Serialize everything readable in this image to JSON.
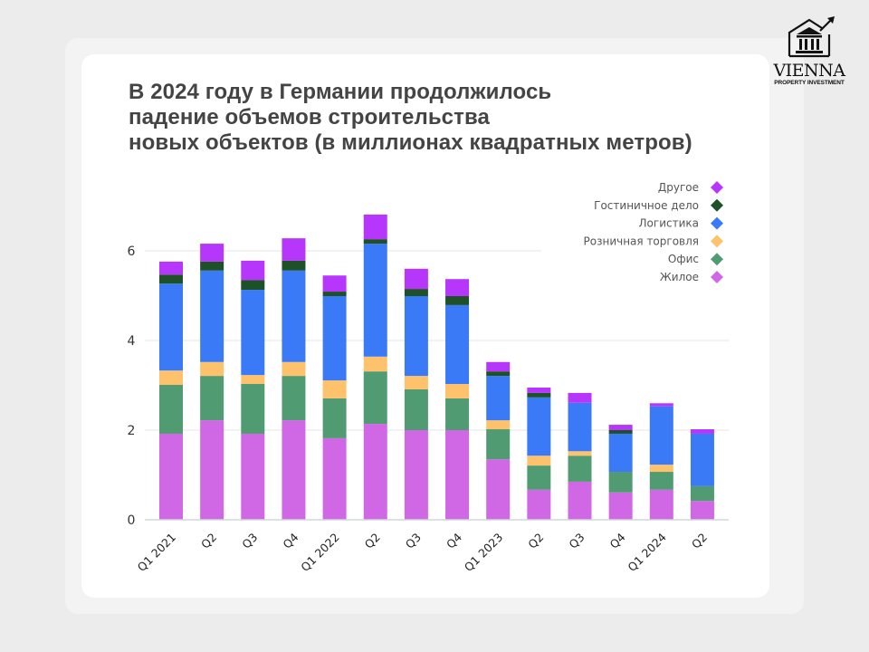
{
  "chart_data": {
    "type": "bar",
    "stacked": true,
    "title": [
      "В 2024 году в Германии продолжилось",
      "падение объемов строительства",
      "новых объектов (в миллионах квадратных метров)"
    ],
    "xlabel": "",
    "ylabel": "",
    "ylim": [
      0,
      7
    ],
    "yticks": [
      0,
      2,
      4,
      6
    ],
    "grid": true,
    "legend_placement": "top-right",
    "categories": [
      "Q1 2021",
      "Q2",
      "Q3",
      "Q4",
      "Q1 2022",
      "Q2",
      "Q3",
      "Q4",
      "Q1 2023",
      "Q2",
      "Q3",
      "Q4",
      "Q1 2024",
      "Q2"
    ],
    "series": [
      {
        "name": "Жилое",
        "color": "#d068e6",
        "values": [
          1.92,
          2.22,
          1.92,
          2.22,
          1.82,
          2.14,
          2.0,
          2.0,
          1.35,
          0.67,
          0.85,
          0.61,
          0.67,
          0.42
        ]
      },
      {
        "name": "Офис",
        "color": "#519b72",
        "values": [
          1.09,
          0.99,
          1.11,
          0.99,
          0.89,
          1.17,
          0.91,
          0.71,
          0.67,
          0.54,
          0.58,
          0.46,
          0.4,
          0.33
        ]
      },
      {
        "name": "Розничная торговля",
        "color": "#fdc26b",
        "values": [
          0.32,
          0.31,
          0.2,
          0.31,
          0.4,
          0.33,
          0.3,
          0.32,
          0.2,
          0.22,
          0.1,
          0.0,
          0.16,
          0.0
        ]
      },
      {
        "name": "Логистика",
        "color": "#3a7af7",
        "values": [
          1.94,
          2.04,
          1.9,
          2.04,
          1.88,
          2.52,
          1.78,
          1.76,
          0.99,
          1.3,
          1.08,
          0.85,
          1.3,
          1.17
        ]
      },
      {
        "name": "Гостиничное дело",
        "color": "#1e5127",
        "values": [
          0.2,
          0.2,
          0.22,
          0.22,
          0.1,
          0.1,
          0.16,
          0.2,
          0.1,
          0.1,
          0.0,
          0.08,
          0.0,
          0.0
        ]
      },
      {
        "name": "Другое",
        "color": "#b637fb",
        "values": [
          0.29,
          0.4,
          0.43,
          0.5,
          0.36,
          0.55,
          0.45,
          0.38,
          0.21,
          0.12,
          0.22,
          0.12,
          0.07,
          0.1
        ]
      }
    ]
  },
  "logo": {
    "name": "VIENNA",
    "tagline": "PROPERTY INVESTMENT"
  }
}
